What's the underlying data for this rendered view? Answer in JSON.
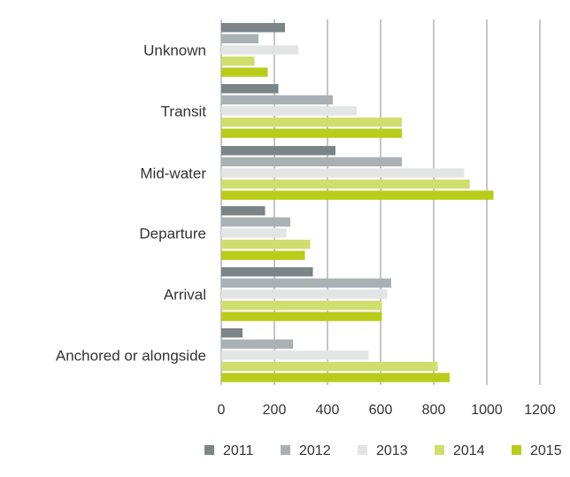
{
  "chart_data": {
    "type": "bar",
    "orientation": "horizontal",
    "title": "",
    "xlabel": "",
    "ylabel": "",
    "categories": [
      "Unknown",
      "Transit",
      "Mid-water",
      "Departure",
      "Arrival",
      "Anchored or alongside"
    ],
    "series": [
      {
        "name": "2011",
        "color": "#7b8487",
        "values": [
          240,
          215,
          430,
          165,
          345,
          80
        ]
      },
      {
        "name": "2012",
        "color": "#aab1b4",
        "values": [
          140,
          420,
          680,
          260,
          640,
          270
        ]
      },
      {
        "name": "2013",
        "color": "#e3e4e4",
        "values": [
          290,
          510,
          915,
          245,
          625,
          555
        ]
      },
      {
        "name": "2014",
        "color": "#cfde6c",
        "values": [
          125,
          680,
          935,
          335,
          605,
          815
        ]
      },
      {
        "name": "2015",
        "color": "#b9cc1a",
        "values": [
          175,
          680,
          1025,
          315,
          605,
          860
        ]
      }
    ],
    "xlim": [
      0,
      1200
    ],
    "xticks": [
      "0",
      "200",
      "400",
      "600",
      "800",
      "1000",
      "1200"
    ],
    "grid": true,
    "legend_position": "bottom"
  }
}
